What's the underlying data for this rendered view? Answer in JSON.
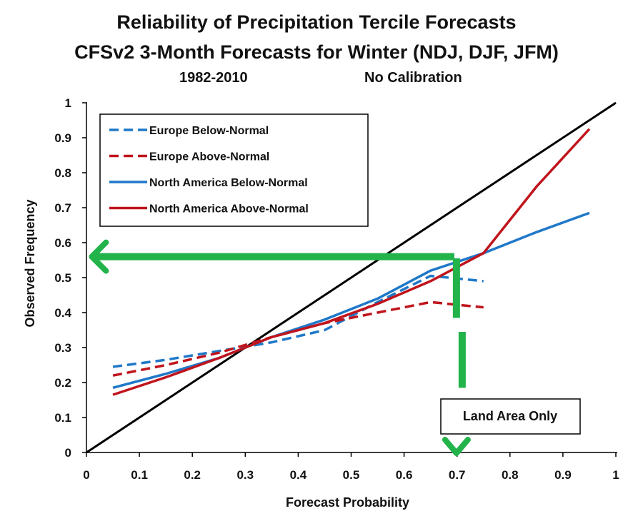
{
  "chart_data": {
    "type": "line",
    "title": "Reliability of Precipitation Tercile Forecasts",
    "subtitle": "CFSv2 3-Month Forecasts for Winter (NDJ, DJF, JFM)",
    "period": "1982-2010",
    "calibration": "No Calibration",
    "xlabel": "Forecast Probability",
    "ylabel": "Observed Frequency",
    "xlim": [
      0,
      1
    ],
    "ylim": [
      0,
      1
    ],
    "x_ticks": [
      "0",
      "0.1",
      "0.2",
      "0.3",
      "0.4",
      "0.5",
      "0.6",
      "0.7",
      "0.8",
      "0.9",
      "1"
    ],
    "y_ticks": [
      "0",
      "0.1",
      "0.2",
      "0.3",
      "0.4",
      "0.5",
      "0.6",
      "0.7",
      "0.8",
      "0.9",
      "1"
    ],
    "grid": false,
    "legend_position": "top-left",
    "series": [
      {
        "name": "Europe Below-Normal",
        "color": "#1f78c8",
        "dash": true,
        "x": [
          0.05,
          0.15,
          0.25,
          0.35,
          0.45,
          0.55,
          0.65,
          0.75
        ],
        "y": [
          0.245,
          0.265,
          0.29,
          0.315,
          0.35,
          0.43,
          0.505,
          0.49
        ]
      },
      {
        "name": "Europe Above-Normal",
        "color": "#c0141c",
        "dash": true,
        "x": [
          0.05,
          0.15,
          0.25,
          0.35,
          0.45,
          0.55,
          0.65,
          0.75
        ],
        "y": [
          0.22,
          0.25,
          0.285,
          0.33,
          0.37,
          0.4,
          0.43,
          0.415
        ]
      },
      {
        "name": "North America Below-Normal",
        "color": "#1f78c8",
        "dash": false,
        "x": [
          0.05,
          0.15,
          0.25,
          0.35,
          0.45,
          0.55,
          0.65,
          0.75,
          0.85,
          0.95
        ],
        "y": [
          0.185,
          0.225,
          0.27,
          0.33,
          0.38,
          0.44,
          0.52,
          0.57,
          0.63,
          0.685
        ]
      },
      {
        "name": "North America Above-Normal",
        "color": "#c0141c",
        "dash": false,
        "x": [
          0.05,
          0.15,
          0.25,
          0.35,
          0.45,
          0.55,
          0.65,
          0.75,
          0.85,
          0.95
        ],
        "y": [
          0.165,
          0.215,
          0.27,
          0.33,
          0.37,
          0.425,
          0.49,
          0.57,
          0.76,
          0.925
        ]
      }
    ],
    "diagonal": {
      "color": "#000000",
      "x": [
        0,
        1
      ],
      "y": [
        0,
        1
      ]
    },
    "annotations": {
      "horizontal_arrow": {
        "color": "#22b34a",
        "from_x": 0.695,
        "to_x": 0.01,
        "y": 0.56
      },
      "vertical_arrow": {
        "color": "#22b34a",
        "x": 0.707,
        "from_y": 0.555,
        "to_y": 0.0
      },
      "note": "Land Area Only"
    }
  }
}
